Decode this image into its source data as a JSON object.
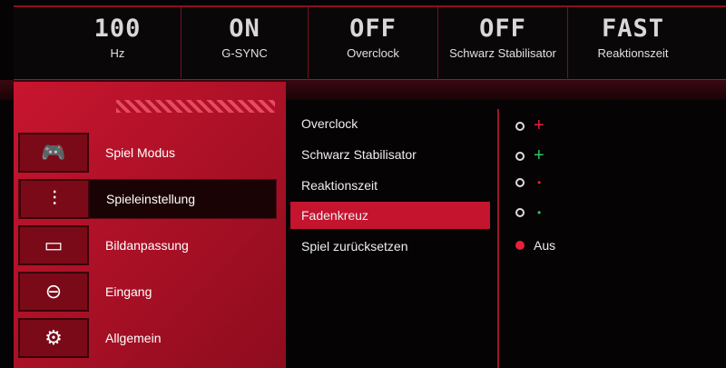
{
  "status": [
    {
      "value": "100",
      "label": "Hz"
    },
    {
      "value": "ON",
      "label": "G-SYNC"
    },
    {
      "value": "OFF",
      "label": "Overclock"
    },
    {
      "value": "OFF",
      "label": "Schwarz Stabilisator"
    },
    {
      "value": "FAST",
      "label": "Reaktionszeit"
    }
  ],
  "menu": [
    {
      "label": "Spiel Modus",
      "icon": "gamepad-icon",
      "glyph": "🎮"
    },
    {
      "label": "Spieleinstellung",
      "icon": "sliders-icon",
      "glyph": "⫶"
    },
    {
      "label": "Bildanpassung",
      "icon": "monitor-icon",
      "glyph": "▭"
    },
    {
      "label": "Eingang",
      "icon": "input-cable-icon",
      "glyph": "⊖"
    },
    {
      "label": "Allgemein",
      "icon": "wrench-gear-icon",
      "glyph": "⚙"
    }
  ],
  "selected_menu": "Spieleinstellung",
  "submenu": [
    "Overclock",
    "Schwarz Stabilisator",
    "Reaktionszeit",
    "Fadenkreuz",
    "Spiel zurücksetzen"
  ],
  "selected_submenu": "Fadenkreuz",
  "crosshair_options": [
    {
      "glyph": "+",
      "color": "#e8203a",
      "selected": false
    },
    {
      "glyph": "+",
      "color": "#2ec46a",
      "selected": false
    },
    {
      "glyph": "•",
      "color": "#e8203a",
      "selected": false
    },
    {
      "glyph": "•",
      "color": "#2ec46a",
      "selected": false
    },
    {
      "label": "Aus",
      "selected": true
    }
  ],
  "colors": {
    "accent": "#c4142e"
  }
}
